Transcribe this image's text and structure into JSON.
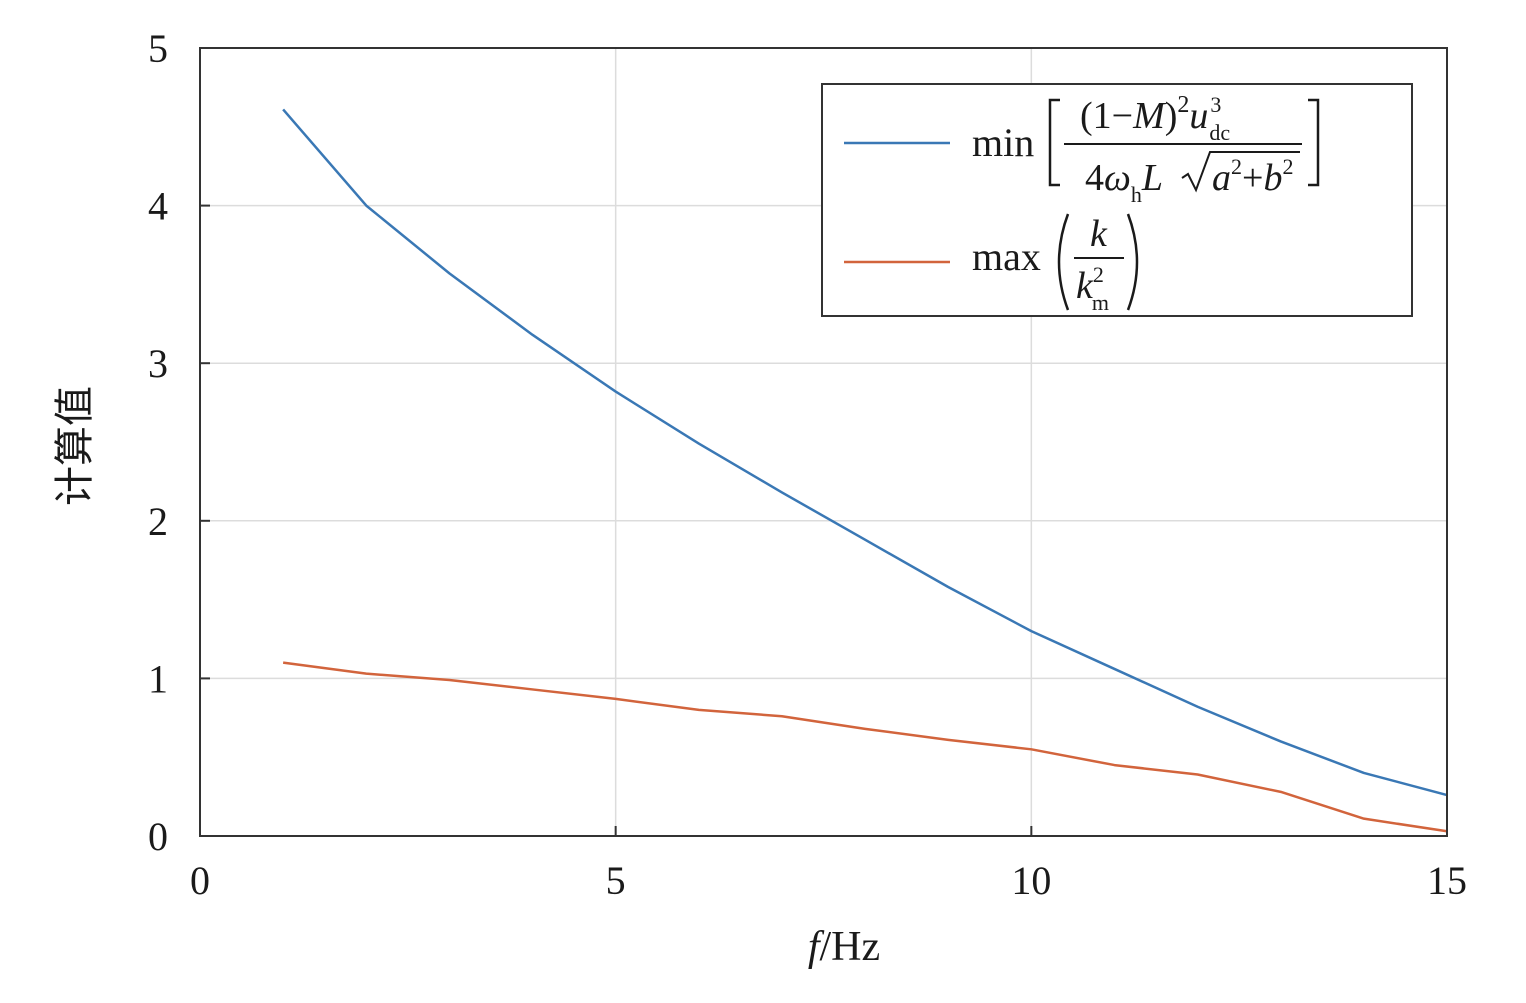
{
  "chart_data": {
    "type": "line",
    "title": "",
    "xlabel": {
      "italic": "f",
      "rest": "/Hz"
    },
    "ylabel": "计算值",
    "xlim": [
      0,
      15
    ],
    "ylim": [
      0,
      5
    ],
    "xticks": [
      0,
      5,
      10,
      15
    ],
    "yticks": [
      0,
      1,
      2,
      3,
      4,
      5
    ],
    "grid": true,
    "legend_position": "top-right",
    "x": [
      1,
      2,
      3,
      4,
      5,
      6,
      7,
      8,
      9,
      10,
      11,
      12,
      13,
      14,
      15
    ],
    "series": [
      {
        "name": "min[(1−M)²u³dc / (4ωhL√(a²+b²))]",
        "color": "#3a78b5",
        "values": [
          4.61,
          4.0,
          3.57,
          3.18,
          2.82,
          2.49,
          2.18,
          1.88,
          1.58,
          1.3,
          1.06,
          0.82,
          0.6,
          0.4,
          0.26
        ]
      },
      {
        "name": "max(k / k²m)",
        "color": "#d2643c",
        "values": [
          1.1,
          1.03,
          0.99,
          0.93,
          0.87,
          0.8,
          0.76,
          0.68,
          0.61,
          0.55,
          0.45,
          0.39,
          0.28,
          0.11,
          0.03
        ]
      }
    ]
  }
}
